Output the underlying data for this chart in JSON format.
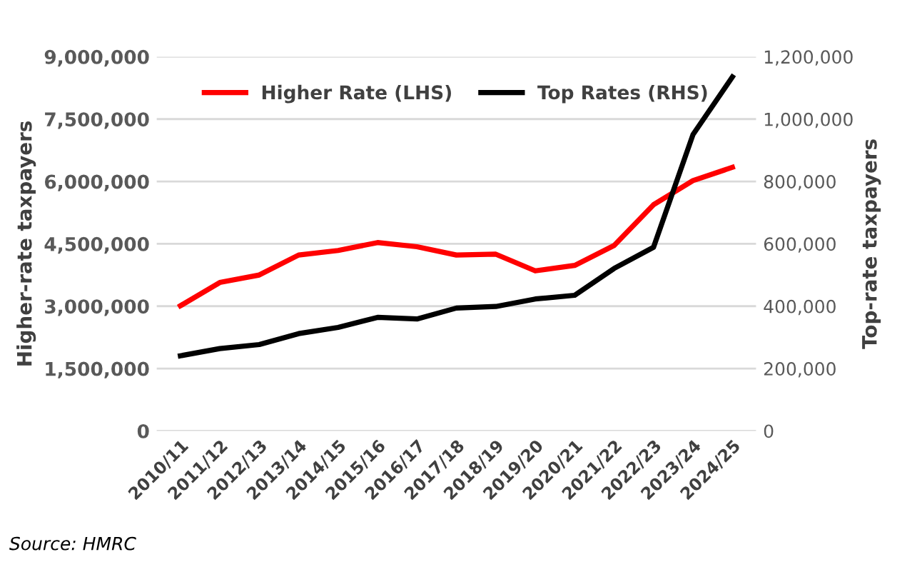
{
  "chart_data": {
    "type": "line",
    "ylabel": "Higher-rate taxpayers",
    "y2label": "Top-rate taxpayers",
    "categories": [
      "2010/11",
      "2011/12",
      "2012/13",
      "2013/14",
      "2014/15",
      "2015/16",
      "2016/17",
      "2017/18",
      "2018/19",
      "2019/20",
      "2020/21",
      "2021/22",
      "2022/23",
      "2023/24",
      "2024/25"
    ],
    "series": [
      {
        "name": "Higher Rate (LHS)",
        "color": "#ff0000",
        "values": [
          3010000,
          3570000,
          3750000,
          4230000,
          4340000,
          4530000,
          4430000,
          4230000,
          4250000,
          3850000,
          3980000,
          4460000,
          5440000,
          6020000,
          6340000
        ]
      },
      {
        "name": "Top Rates (RHS)",
        "color": "#000000",
        "axis": "y2",
        "values": [
          241000,
          264000,
          277000,
          312000,
          332000,
          364000,
          359000,
          394000,
          399000,
          423000,
          435000,
          521000,
          589000,
          950000,
          1135000
        ]
      }
    ],
    "ylim": [
      0,
      9000000
    ],
    "yticks": [
      {
        "value": 0,
        "label": "0"
      },
      {
        "value": 1500000,
        "label": "1,500,000"
      },
      {
        "value": 3000000,
        "label": "3,000,000"
      },
      {
        "value": 4500000,
        "label": "4,500,000"
      },
      {
        "value": 6000000,
        "label": "6,000,000"
      },
      {
        "value": 7500000,
        "label": "7,500,000"
      },
      {
        "value": 9000000,
        "label": "9,000,000"
      }
    ],
    "y2lim": [
      0,
      1200000
    ],
    "y2ticks": [
      {
        "value": 0,
        "label": "0"
      },
      {
        "value": 200000,
        "label": "200,000"
      },
      {
        "value": 400000,
        "label": "400,000"
      },
      {
        "value": 600000,
        "label": "600,000"
      },
      {
        "value": 800000,
        "label": "800,000"
      },
      {
        "value": 1000000,
        "label": "1,000,000"
      },
      {
        "value": 1200000,
        "label": "1,200,000"
      }
    ],
    "grid": "y",
    "legend": "top",
    "marker": "none",
    "line_style": "solid",
    "annotations": [
      "Source: HMRC"
    ]
  }
}
